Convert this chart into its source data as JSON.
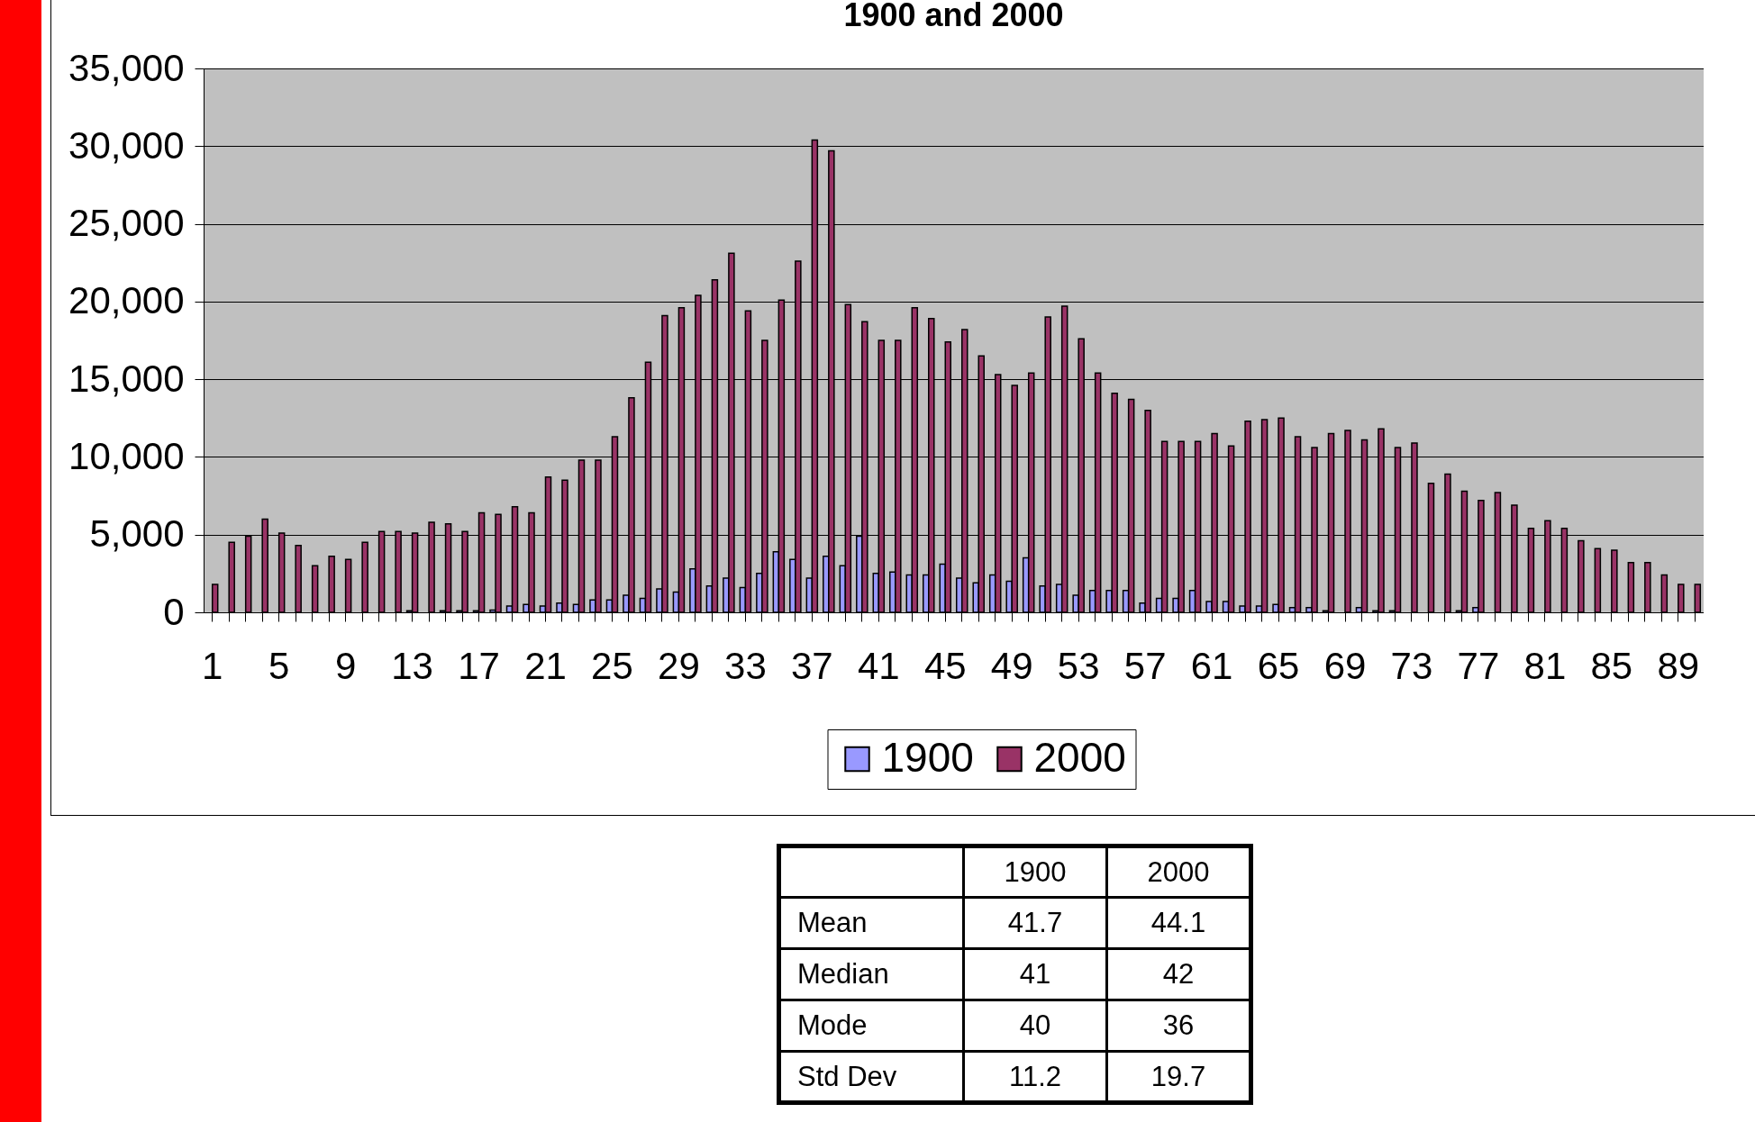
{
  "chart_data": {
    "type": "bar",
    "title": "1900 and 2000",
    "categories": [
      "1",
      null,
      null,
      null,
      "5",
      null,
      null,
      null,
      "9",
      null,
      null,
      null,
      "13",
      null,
      null,
      null,
      "17",
      null,
      null,
      null,
      "21",
      null,
      null,
      null,
      "25",
      null,
      null,
      null,
      "29",
      null,
      null,
      null,
      "33",
      null,
      null,
      null,
      "37",
      null,
      null,
      null,
      "41",
      null,
      null,
      null,
      "45",
      null,
      null,
      null,
      "49",
      null,
      null,
      null,
      "53",
      null,
      null,
      null,
      "57",
      null,
      null,
      null,
      "61",
      null,
      null,
      null,
      "65",
      null,
      null,
      null,
      "69",
      null,
      null,
      null,
      "73",
      null,
      null,
      null,
      "77",
      null,
      null,
      null,
      "81",
      null,
      null,
      null,
      "85",
      null,
      null,
      null,
      "89",
      null
    ],
    "series": [
      {
        "name": "1900",
        "color": "#9999ff",
        "values": [
          0,
          0,
          0,
          0,
          0,
          0,
          0,
          0,
          0,
          0,
          0,
          0,
          100,
          0,
          100,
          100,
          100,
          150,
          400,
          500,
          400,
          600,
          500,
          800,
          800,
          1100,
          900,
          1500,
          1300,
          2800,
          1700,
          2200,
          1600,
          2500,
          3900,
          3400,
          2200,
          3600,
          3000,
          4900,
          2500,
          2600,
          2400,
          2400,
          3100,
          2200,
          1900,
          2400,
          2000,
          3500,
          1700,
          1800,
          1100,
          1400,
          1400,
          1400,
          600,
          900,
          900,
          1400,
          700,
          700,
          400,
          400,
          500,
          300,
          300,
          100,
          0,
          300,
          100,
          100,
          0,
          0,
          0,
          100,
          300,
          0,
          0,
          0,
          0,
          0,
          0,
          0,
          0,
          0,
          0,
          0,
          0,
          0
        ]
      },
      {
        "name": "2000",
        "color": "#993366",
        "values": [
          1800,
          4500,
          4900,
          6000,
          5100,
          4300,
          3000,
          3600,
          3400,
          4500,
          5200,
          5200,
          5100,
          5800,
          5700,
          5200,
          6400,
          6300,
          6800,
          6400,
          8700,
          8500,
          9800,
          9800,
          11300,
          13800,
          16100,
          19100,
          19600,
          20400,
          21400,
          23100,
          19400,
          17500,
          20100,
          22600,
          30400,
          29700,
          19800,
          18700,
          17500,
          17500,
          19600,
          18900,
          17400,
          18200,
          16500,
          15300,
          14600,
          15400,
          19000,
          19700,
          17600,
          15400,
          14100,
          13700,
          13000,
          11000,
          11000,
          11000,
          11500,
          10700,
          12300,
          12400,
          12500,
          11300,
          10600,
          11500,
          11700,
          11100,
          11800,
          10600,
          10900,
          8300,
          8900,
          7800,
          7200,
          7700,
          6900,
          5400,
          5900,
          5400,
          4600,
          4100,
          4000,
          3200,
          3200,
          2400,
          1800,
          1800
        ]
      }
    ],
    "ylim": [
      0,
      35000
    ],
    "yticks": [
      {
        "value": 0,
        "label": "0"
      },
      {
        "value": 5000,
        "label": "5,000"
      },
      {
        "value": 10000,
        "label": "10,000"
      },
      {
        "value": 15000,
        "label": "15,000"
      },
      {
        "value": 20000,
        "label": "20,000"
      },
      {
        "value": 25000,
        "label": "25,000"
      },
      {
        "value": 30000,
        "label": "30,000"
      },
      {
        "value": 35000,
        "label": "35,000"
      }
    ],
    "grid": "y",
    "legend": "bottom",
    "annotations": [
      "1900",
      "2000",
      "Mean",
      "41.7",
      "44.1",
      "Median",
      "41",
      "42",
      "Mode",
      "40",
      "36",
      "Std Dev",
      "11.2",
      "19.7"
    ]
  }
}
